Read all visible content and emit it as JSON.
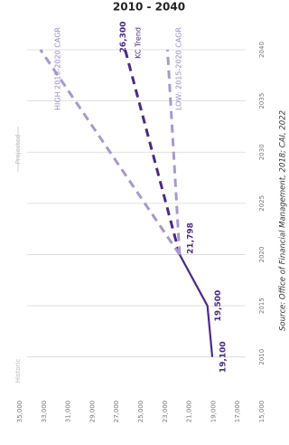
{
  "chart_data": {
    "type": "line",
    "title": "2010 - 2040",
    "x": [
      2010,
      2015,
      2020,
      2040
    ],
    "series": [
      {
        "name": "Historic",
        "color": "#4b2a82",
        "dash": false,
        "values": [
          19100,
          19500,
          21798,
          null
        ],
        "value_labels": [
          "19,100",
          "19,500",
          "21,798",
          null
        ]
      },
      {
        "name": "KC Trend",
        "color": "#4b2a82",
        "dash": true,
        "values": [
          null,
          null,
          21798,
          26300
        ],
        "value_labels": [
          null,
          null,
          null,
          "26,300"
        ]
      },
      {
        "name": "HIGH 2015-2020 CAGR",
        "color": "#a898cc",
        "dash": true,
        "values": [
          null,
          null,
          21798,
          33300
        ]
      },
      {
        "name": "LOW: 2015-2020 CAGR",
        "color": "#a898cc",
        "dash": true,
        "values": [
          null,
          null,
          21798,
          22800
        ]
      }
    ],
    "xlim": [
      2007.5,
      2041.5
    ],
    "xticks": [
      2010,
      2015,
      2020,
      2025,
      2030,
      2035,
      2040
    ],
    "ylim": [
      15000,
      35000
    ],
    "yticks": [
      {
        "value": 35000,
        "label": "35,000"
      },
      {
        "value": 33000,
        "label": "33,000"
      },
      {
        "value": 31000,
        "label": "31,000"
      },
      {
        "value": 29000,
        "label": "29,000"
      },
      {
        "value": 27000,
        "label": "27,000"
      },
      {
        "value": 25000,
        "label": "25,000"
      },
      {
        "value": 23000,
        "label": "23,000"
      },
      {
        "value": 21000,
        "label": "21,000"
      },
      {
        "value": 19000,
        "label": "19,000"
      },
      {
        "value": 17000,
        "label": "17,000"
      },
      {
        "value": 15000,
        "label": "15,000"
      }
    ],
    "grid": true,
    "annotations": [
      "Historic",
      "Projected"
    ],
    "source": "Source: Office of Financial Management, 2018; CAI, 2022"
  }
}
